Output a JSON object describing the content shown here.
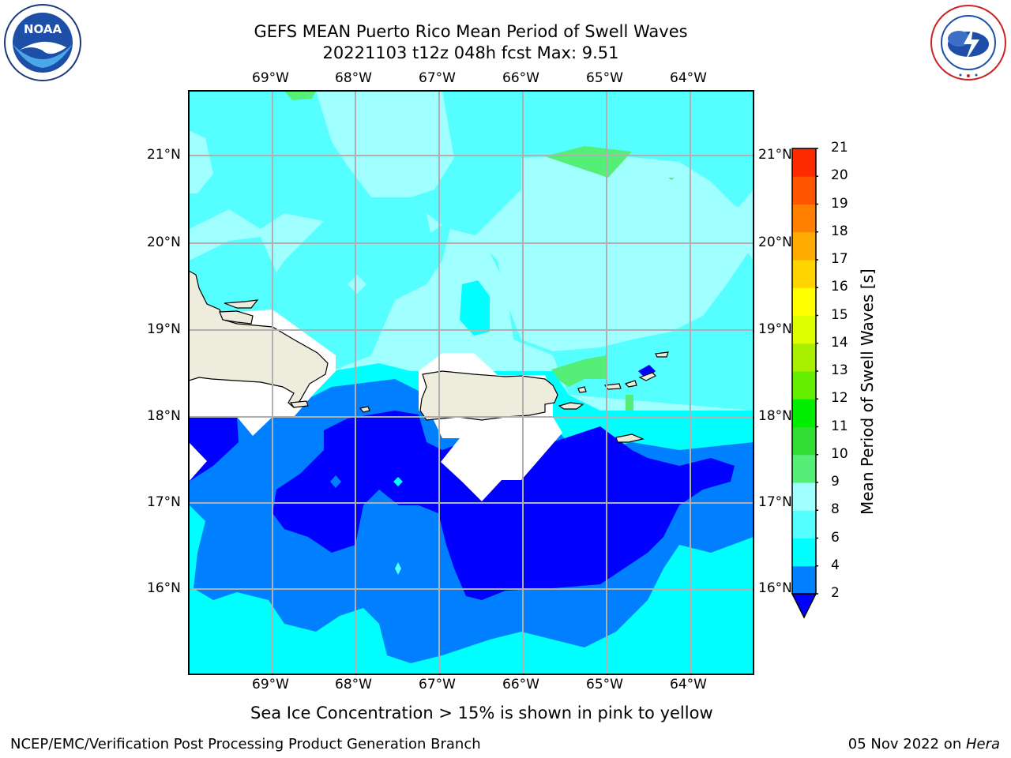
{
  "header": {
    "title_line1": "GEFS MEAN Puerto Rico Mean Period of Swell Waves",
    "title_line2": "20221103 t12z 048h fcst   Max: 9.51"
  },
  "logos": {
    "left": {
      "name": "noaa-logo",
      "text": "NOAA"
    },
    "right": {
      "name": "nws-logo",
      "text": "NATIONAL WEATHER SERVICE"
    }
  },
  "map": {
    "lon_labels": [
      "69°W",
      "68°W",
      "67°W",
      "66°W",
      "65°W",
      "64°W"
    ],
    "lat_labels": [
      "21°N",
      "20°N",
      "19°N",
      "18°N",
      "17°N",
      "16°N"
    ],
    "colors": {
      "land": "#EEECDC",
      "mask": "#FFFFFF",
      "grid": "#B0B0B0"
    }
  },
  "colorbar": {
    "title": "Mean Period of Swell Waves [s]",
    "levels": [
      "2",
      "4",
      "6",
      "8",
      "9",
      "10",
      "11",
      "12",
      "13",
      "14",
      "15",
      "16",
      "17",
      "18",
      "19",
      "20",
      "21"
    ],
    "colors": [
      "#0000FF",
      "#0080FF",
      "#00FFFF",
      "#55FFFF",
      "#A0FFFF",
      "#55EE77",
      "#33DD33",
      "#00EE00",
      "#66EE00",
      "#AAEE00",
      "#DDFF00",
      "#FFFF00",
      "#FFD400",
      "#FFAA00",
      "#FF8000",
      "#FF5500",
      "#FF2B00",
      "#FF0000"
    ]
  },
  "notes": {
    "sea_ice": "Sea Ice Concentration > 15% is shown in pink to yellow"
  },
  "footer": {
    "left": "NCEP/EMC/Verification Post Processing Product Generation Branch",
    "right_date": "05 Nov 2022 on ",
    "right_host": "Hera"
  }
}
